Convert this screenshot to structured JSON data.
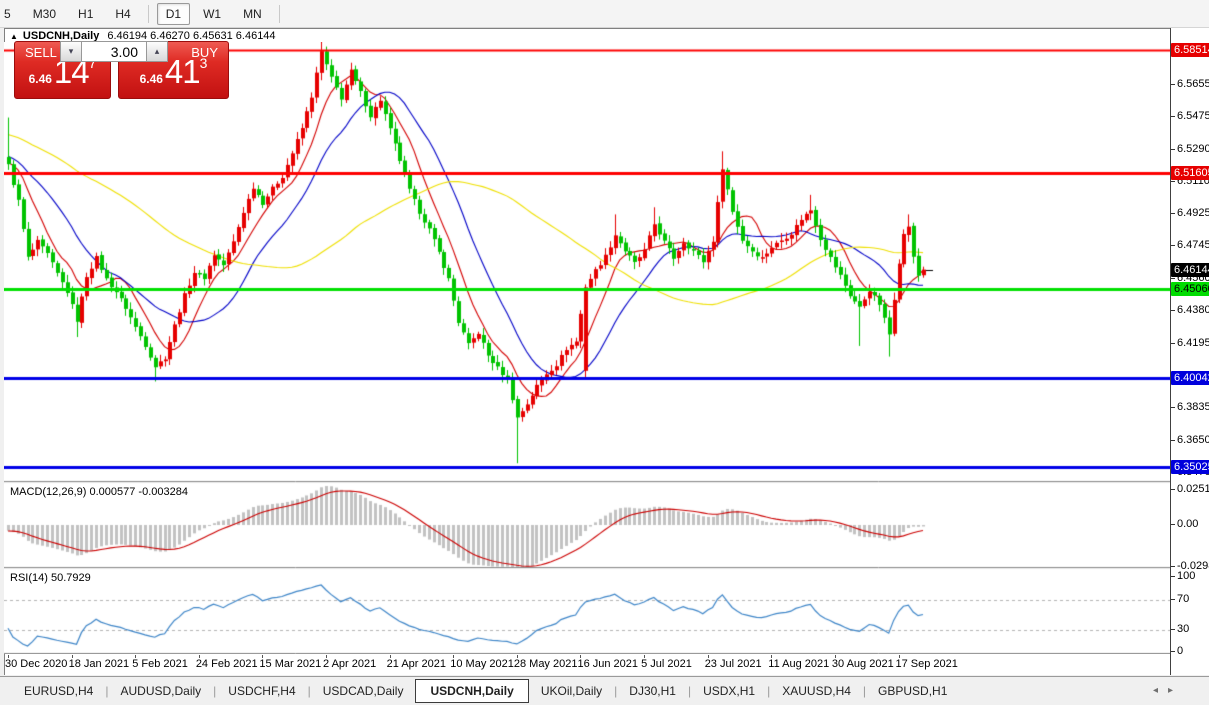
{
  "toolbar": {
    "timeframes": [
      {
        "label": "5",
        "active": false
      },
      {
        "label": "M30",
        "active": false
      },
      {
        "label": "H1",
        "active": false
      },
      {
        "label": "H4",
        "active": false
      },
      {
        "sep": true
      },
      {
        "label": "D1",
        "active": true
      },
      {
        "label": "W1",
        "active": false
      },
      {
        "label": "MN",
        "active": false
      },
      {
        "sep": true
      }
    ]
  },
  "chart_header": {
    "collapse_icon": "▲",
    "symbol": "USDCNH,Daily",
    "ohlc": "6.46194 6.46270 6.45631 6.46144"
  },
  "trade_panel": {
    "sell_label": "SELL",
    "buy_label": "BUY",
    "lot_size": "3.00",
    "spin_down_icon": "▾",
    "spin_up_icon": "▴",
    "sell_price_base": "6.46",
    "sell_price_big": "14",
    "sell_price_sup": "7",
    "buy_price_base": "6.46",
    "buy_price_big": "41",
    "buy_price_sup": "3"
  },
  "macd_panel": {
    "label": "MACD(12,26,9) 0.000577 -0.003284",
    "axis": [
      {
        "label": "0.025108",
        "value": 0.025108
      },
      {
        "label": "0.00",
        "value": 0
      },
      {
        "label": "-0.029881",
        "value": -0.029881
      }
    ]
  },
  "rsi_panel": {
    "label": "RSI(14) 50.7929",
    "axis": [
      {
        "label": "100",
        "value": 100
      },
      {
        "label": "70",
        "value": 70
      },
      {
        "label": "30",
        "value": 30
      },
      {
        "label": "0",
        "value": 0
      }
    ],
    "levels": [
      70,
      30
    ]
  },
  "price_axis": {
    "ticks": [
      {
        "label": "6.56550",
        "value": 6.5655
      },
      {
        "label": "6.54750",
        "value": 6.5475
      },
      {
        "label": "6.52900",
        "value": 6.529
      },
      {
        "label": "6.51100",
        "value": 6.511
      },
      {
        "label": "6.49250",
        "value": 6.4925
      },
      {
        "label": "6.47450",
        "value": 6.4745
      },
      {
        "label": "6.45600",
        "value": 6.456
      },
      {
        "label": "6.43800",
        "value": 6.438
      },
      {
        "label": "6.41950",
        "value": 6.4195
      },
      {
        "label": "6.38350",
        "value": 6.3835
      },
      {
        "label": "6.36500",
        "value": 6.365
      },
      {
        "label": "6.34700",
        "value": 6.347
      }
    ],
    "badges": [
      {
        "label": "6.58514",
        "value": 6.58514,
        "bg": "#e60000",
        "fg": "#ffffff"
      },
      {
        "label": "6.51605",
        "value": 6.51605,
        "bg": "#e60000",
        "fg": "#ffffff"
      },
      {
        "label": "6.46144",
        "value": 6.46144,
        "bg": "#000000",
        "fg": "#ffffff"
      },
      {
        "label": "6.45060",
        "value": 6.4506,
        "bg": "#00dc00",
        "fg": "#000000"
      },
      {
        "label": "6.40042",
        "value": 6.40042,
        "bg": "#0000dc",
        "fg": "#ffffff"
      },
      {
        "label": "6.35025",
        "value": 6.35025,
        "bg": "#0000dc",
        "fg": "#ffffff"
      }
    ]
  },
  "date_axis": [
    {
      "label": "30 Dec 2020",
      "bar": 0
    },
    {
      "label": "18 Jan 2021",
      "bar": 13
    },
    {
      "label": "5 Feb 2021",
      "bar": 26
    },
    {
      "label": "24 Feb 2021",
      "bar": 39
    },
    {
      "label": "15 Mar 2021",
      "bar": 52
    },
    {
      "label": "2 Apr 2021",
      "bar": 65
    },
    {
      "label": "21 Apr 2021",
      "bar": 78
    },
    {
      "label": "10 May 2021",
      "bar": 91
    },
    {
      "label": "28 May 2021",
      "bar": 104
    },
    {
      "label": "16 Jun 2021",
      "bar": 117
    },
    {
      "label": "5 Jul 2021",
      "bar": 130
    },
    {
      "label": "23 Jul 2021",
      "bar": 143
    },
    {
      "label": "11 Aug 2021",
      "bar": 156
    },
    {
      "label": "30 Aug 2021",
      "bar": 169
    },
    {
      "label": "17 Sep 2021",
      "bar": 182
    }
  ],
  "tabs": {
    "items": [
      {
        "label": "EURUSD,H4",
        "active": false
      },
      {
        "label": "AUDUSD,Daily",
        "active": false
      },
      {
        "label": "USDCHF,H4",
        "active": false
      },
      {
        "label": "USDCAD,Daily",
        "active": false
      },
      {
        "label": "USDCNH,Daily",
        "active": true
      },
      {
        "label": "UKOil,Daily",
        "active": false
      },
      {
        "label": "DJ30,H1",
        "active": false
      },
      {
        "label": "USDX,H1",
        "active": false
      },
      {
        "label": "XAUUSD,H4",
        "active": false
      },
      {
        "label": "GBPUSD,H1",
        "active": false
      }
    ],
    "scroll_left_icon": "◂",
    "scroll_right_icon": "▸"
  },
  "colors": {
    "bull": "#e60000",
    "bear": "#00c300",
    "ma_fast": "#d40000",
    "ma_mid": "#0000c8",
    "ma_slow": "#efe000",
    "macd_hist": "#c2c2c2",
    "macd_signal": "#cc0000",
    "rsi_line": "#3d85c8",
    "level_dash": "#b4b4b4"
  },
  "chart_data": {
    "type": "candlestick",
    "symbol": "USDCNH",
    "timeframe": "Daily",
    "bars": 188,
    "price_top": 6.5895,
    "price_bottom": 6.3425,
    "close_keyframes": [
      [
        0,
        6.52
      ],
      [
        2,
        6.5
      ],
      [
        4,
        6.468
      ],
      [
        6,
        6.477
      ],
      [
        8,
        6.47
      ],
      [
        10,
        6.459
      ],
      [
        12,
        6.449
      ],
      [
        14,
        6.433
      ],
      [
        16,
        6.458
      ],
      [
        18,
        6.468
      ],
      [
        20,
        6.456
      ],
      [
        22,
        6.449
      ],
      [
        24,
        6.44
      ],
      [
        26,
        6.429
      ],
      [
        28,
        6.419
      ],
      [
        30,
        6.407
      ],
      [
        32,
        6.412
      ],
      [
        34,
        6.43
      ],
      [
        36,
        6.447
      ],
      [
        38,
        6.46
      ],
      [
        40,
        6.457
      ],
      [
        42,
        6.47
      ],
      [
        44,
        6.464
      ],
      [
        46,
        6.477
      ],
      [
        48,
        6.494
      ],
      [
        50,
        6.508
      ],
      [
        52,
        6.499
      ],
      [
        54,
        6.507
      ],
      [
        56,
        6.514
      ],
      [
        58,
        6.527
      ],
      [
        60,
        6.541
      ],
      [
        62,
        6.559
      ],
      [
        64,
        6.584
      ],
      [
        66,
        6.569
      ],
      [
        68,
        6.558
      ],
      [
        70,
        6.573
      ],
      [
        72,
        6.561
      ],
      [
        74,
        6.548
      ],
      [
        76,
        6.557
      ],
      [
        78,
        6.54
      ],
      [
        80,
        6.523
      ],
      [
        82,
        6.506
      ],
      [
        84,
        6.494
      ],
      [
        86,
        6.484
      ],
      [
        88,
        6.471
      ],
      [
        90,
        6.456
      ],
      [
        92,
        6.432
      ],
      [
        94,
        6.419
      ],
      [
        96,
        6.426
      ],
      [
        98,
        6.413
      ],
      [
        100,
        6.406
      ],
      [
        102,
        6.4
      ],
      [
        104,
        6.378
      ],
      [
        106,
        6.386
      ],
      [
        108,
        6.396
      ],
      [
        110,
        6.403
      ],
      [
        112,
        6.408
      ],
      [
        114,
        6.417
      ],
      [
        116,
        6.421
      ],
      [
        118,
        6.452
      ],
      [
        120,
        6.461
      ],
      [
        122,
        6.469
      ],
      [
        124,
        6.481
      ],
      [
        126,
        6.472
      ],
      [
        128,
        6.465
      ],
      [
        130,
        6.472
      ],
      [
        132,
        6.487
      ],
      [
        134,
        6.477
      ],
      [
        136,
        6.468
      ],
      [
        138,
        6.477
      ],
      [
        140,
        6.472
      ],
      [
        142,
        6.466
      ],
      [
        144,
        6.478
      ],
      [
        146,
        6.519
      ],
      [
        148,
        6.494
      ],
      [
        150,
        6.478
      ],
      [
        152,
        6.472
      ],
      [
        154,
        6.468
      ],
      [
        156,
        6.474
      ],
      [
        158,
        6.478
      ],
      [
        160,
        6.482
      ],
      [
        162,
        6.49
      ],
      [
        164,
        6.495
      ],
      [
        166,
        6.479
      ],
      [
        168,
        6.468
      ],
      [
        170,
        6.458
      ],
      [
        172,
        6.447
      ],
      [
        174,
        6.44
      ],
      [
        176,
        6.45
      ],
      [
        178,
        6.442
      ],
      [
        180,
        6.425
      ],
      [
        182,
        6.466
      ],
      [
        183,
        6.481
      ],
      [
        184,
        6.486
      ],
      [
        185,
        6.468
      ],
      [
        186,
        6.458
      ],
      [
        187,
        6.46144
      ]
    ],
    "spikes": {
      "0": {
        "high": 6.547
      },
      "14": {
        "low": 6.4235
      },
      "30": {
        "low": 6.3985
      },
      "64": {
        "high": 6.5895
      },
      "104": {
        "low": 6.3525
      },
      "118": {
        "open": 6.4045
      },
      "124": {
        "high": 6.4925
      },
      "132": {
        "high": 6.4965
      },
      "146": {
        "high": 6.528
      },
      "164": {
        "high": 6.5035
      },
      "174": {
        "low": 6.4185
      },
      "180": {
        "low": 6.4125
      },
      "184": {
        "high": 6.4925
      }
    },
    "prehistory": {
      "len": 60,
      "from": 6.558,
      "to": 6.52
    },
    "moving_averages": [
      {
        "period": 8,
        "color_key": "ma_fast"
      },
      {
        "period": 18,
        "color_key": "ma_mid"
      },
      {
        "period": 57,
        "color_key": "ma_slow"
      }
    ],
    "hlines": [
      {
        "value": 6.58514,
        "color": "#fe0000",
        "width": 2
      },
      {
        "value": 6.51605,
        "color": "#fe0000",
        "width": 3
      },
      {
        "value": 6.4506,
        "color": "#00e000",
        "width": 3
      },
      {
        "value": 6.40042,
        "color": "#0000e8",
        "width": 3
      },
      {
        "value": 6.35025,
        "color": "#0000e8",
        "width": 3
      }
    ],
    "last_price": 6.46144,
    "macd": {
      "fast": 12,
      "slow": 26,
      "signal": 9,
      "scale_top": 0.025108
    },
    "rsi": {
      "period": 14
    }
  }
}
